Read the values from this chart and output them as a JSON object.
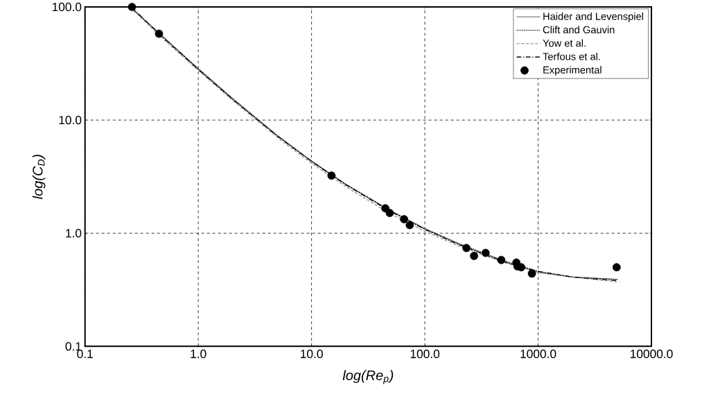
{
  "chart_data": {
    "type": "line",
    "xlabel": "log(Re$_{p}$)",
    "ylabel": "log(C$_{D}$)",
    "log": "xy",
    "grid": true,
    "legend": "top right",
    "xlim": [
      0.1,
      10000
    ],
    "ylim": [
      0.1,
      100
    ],
    "xticks": [
      {
        "value": 0.1,
        "label": "0.1"
      },
      {
        "value": 1,
        "label": "1.0"
      },
      {
        "value": 10,
        "label": "10.0"
      },
      {
        "value": 100,
        "label": "100.0"
      },
      {
        "value": 1000,
        "label": "1000.0"
      },
      {
        "value": 10000,
        "label": "10000.0"
      }
    ],
    "yticks": [
      {
        "value": 0.1,
        "label": "0.1"
      },
      {
        "value": 1,
        "label": "1.0"
      },
      {
        "value": 10,
        "label": "10.0"
      },
      {
        "value": 100,
        "label": "100.0"
      }
    ],
    "series": [
      {
        "name": "Haider and Levenspiel",
        "color": "#808080",
        "line_style": "solid",
        "marker": "none",
        "x": [
          0.25,
          0.5,
          1,
          2,
          5,
          10,
          20,
          50,
          100,
          200,
          500,
          1000,
          2000,
          5000
        ],
        "values": [
          99.5,
          53.5,
          28.3,
          15.4,
          7.25,
          4.32,
          2.7,
          1.57,
          1.09,
          0.8,
          0.56,
          0.45,
          0.41,
          0.39
        ]
      },
      {
        "name": "Clift and Gauvin",
        "color": "#000000",
        "line_style": "dotted",
        "marker": "none",
        "x": [
          0.255,
          0.5,
          1,
          2,
          5,
          10,
          20,
          50,
          100,
          200,
          500,
          1000,
          2000,
          5100
        ],
        "values": [
          99,
          53,
          28.5,
          15.6,
          7.3,
          4.35,
          2.72,
          1.58,
          1.1,
          0.81,
          0.57,
          0.46,
          0.41,
          0.39
        ]
      },
      {
        "name": "Yow et al.",
        "color": "#909090",
        "line_style": "dashed",
        "marker": "none",
        "x": [
          0.27,
          0.5,
          1,
          2,
          5,
          10,
          20,
          50,
          100,
          200,
          500,
          1000,
          2000,
          5200
        ],
        "values": [
          92,
          51,
          27.5,
          15,
          7,
          4.15,
          2.58,
          1.48,
          1.04,
          0.77,
          0.55,
          0.45,
          0.41,
          0.37
        ]
      },
      {
        "name": "Terfous et al.",
        "color": "#000000",
        "line_style": "dashdot",
        "marker": "none",
        "x": [
          0.26,
          0.5,
          1,
          2,
          5,
          10,
          20,
          50,
          100,
          200,
          500,
          1000,
          2000,
          4900
        ],
        "values": [
          98.5,
          52.5,
          28,
          15.3,
          7.2,
          4.3,
          2.68,
          1.55,
          1.08,
          0.79,
          0.56,
          0.46,
          0.41,
          0.38
        ]
      },
      {
        "name": "Experimental",
        "type": "scatter",
        "color": "#000000",
        "marker": "circle",
        "x": [
          0.26,
          0.45,
          15,
          44.8,
          49,
          65.6,
          73.6,
          233,
          272,
          344,
          473,
          643,
          657,
          709,
          881,
          4930
        ],
        "values": [
          100,
          58,
          3.23,
          1.66,
          1.51,
          1.33,
          1.18,
          0.74,
          0.63,
          0.67,
          0.58,
          0.55,
          0.51,
          0.5,
          0.44,
          0.5
        ]
      }
    ]
  }
}
